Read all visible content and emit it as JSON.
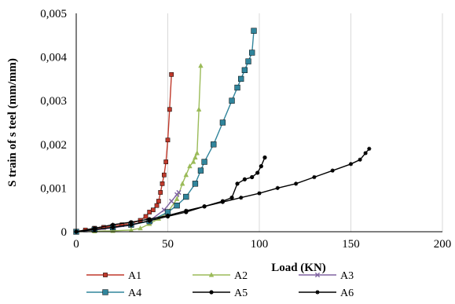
{
  "chart_data": {
    "type": "line",
    "xlabel": "Load (KN)",
    "ylabel": "S train of s teel (mm/mm)",
    "xlim": [
      0,
      200
    ],
    "ylim": [
      0,
      0.005
    ],
    "x_ticks": [
      0,
      50,
      100,
      150,
      200
    ],
    "x_tick_labels": [
      "0",
      "50",
      "100",
      "150",
      "200"
    ],
    "y_ticks": [
      0,
      0.001,
      0.002,
      0.003,
      0.004,
      0.005
    ],
    "y_tick_labels": [
      "0",
      "0,001",
      "0,002",
      "0,003",
      "0,004",
      "0,005"
    ],
    "grid": "vertical",
    "legend_position": "bottom",
    "series": [
      {
        "name": "A1",
        "color": "#c0392b",
        "marker": "square",
        "points": [
          [
            0,
            0
          ],
          [
            5,
            4e-05
          ],
          [
            10,
            8e-05
          ],
          [
            15,
            0.0001
          ],
          [
            20,
            0.00013
          ],
          [
            25,
            0.00016
          ],
          [
            30,
            0.00019
          ],
          [
            35,
            0.00026
          ],
          [
            38,
            0.00035
          ],
          [
            40,
            0.00045
          ],
          [
            42,
            0.0005
          ],
          [
            44,
            0.0006
          ],
          [
            45,
            0.0007
          ],
          [
            46,
            0.0009
          ],
          [
            47,
            0.0011
          ],
          [
            48,
            0.0013
          ],
          [
            49,
            0.0016
          ],
          [
            50,
            0.0021
          ],
          [
            51,
            0.0028
          ],
          [
            52,
            0.0036
          ]
        ]
      },
      {
        "name": "A2",
        "color": "#9bbb59",
        "marker": "triangle",
        "points": [
          [
            0,
            0
          ],
          [
            10,
            1e-05
          ],
          [
            20,
            2e-05
          ],
          [
            30,
            4e-05
          ],
          [
            35,
            8e-05
          ],
          [
            40,
            0.00018
          ],
          [
            45,
            0.0003
          ],
          [
            50,
            0.00045
          ],
          [
            55,
            0.00075
          ],
          [
            58,
            0.0011
          ],
          [
            60,
            0.0013
          ],
          [
            62,
            0.0015
          ],
          [
            64,
            0.0016
          ],
          [
            65,
            0.0017
          ],
          [
            66,
            0.0018
          ],
          [
            67,
            0.0028
          ],
          [
            68,
            0.0038
          ]
        ]
      },
      {
        "name": "A3",
        "color": "#8064a2",
        "marker": "x",
        "points": [
          [
            0,
            0
          ],
          [
            10,
            4e-05
          ],
          [
            20,
            9e-05
          ],
          [
            30,
            0.00015
          ],
          [
            40,
            0.00025
          ],
          [
            48,
            0.0005
          ],
          [
            52,
            0.0007
          ],
          [
            55,
            0.00085
          ],
          [
            56,
            0.0009
          ]
        ]
      },
      {
        "name": "A4",
        "color": "#31859c",
        "marker": "square",
        "points": [
          [
            0,
            0
          ],
          [
            10,
            5e-05
          ],
          [
            20,
            0.0001
          ],
          [
            30,
            0.00016
          ],
          [
            40,
            0.00024
          ],
          [
            50,
            0.00045
          ],
          [
            55,
            0.0006
          ],
          [
            60,
            0.0008
          ],
          [
            65,
            0.0011
          ],
          [
            68,
            0.0014
          ],
          [
            70,
            0.0016
          ],
          [
            75,
            0.002
          ],
          [
            80,
            0.0025
          ],
          [
            85,
            0.003
          ],
          [
            88,
            0.0033
          ],
          [
            90,
            0.0035
          ],
          [
            92,
            0.0037
          ],
          [
            94,
            0.0039
          ],
          [
            96,
            0.0041
          ],
          [
            97,
            0.0046
          ]
        ]
      },
      {
        "name": "A5",
        "color": "#000000",
        "marker": "circle",
        "points": [
          [
            0,
            0
          ],
          [
            10,
            5e-05
          ],
          [
            20,
            0.0001
          ],
          [
            30,
            0.00016
          ],
          [
            40,
            0.00025
          ],
          [
            50,
            0.00035
          ],
          [
            60,
            0.00045
          ],
          [
            70,
            0.00058
          ],
          [
            80,
            0.0007
          ],
          [
            85,
            0.00078
          ],
          [
            88,
            0.0011
          ],
          [
            92,
            0.0012
          ],
          [
            96,
            0.00125
          ],
          [
            99,
            0.00135
          ],
          [
            101,
            0.0015
          ],
          [
            103,
            0.0017
          ]
        ]
      },
      {
        "name": "A6",
        "color": "#000000",
        "marker": "asterisk",
        "points": [
          [
            0,
            0
          ],
          [
            10,
            8e-05
          ],
          [
            20,
            0.00016
          ],
          [
            30,
            0.00022
          ],
          [
            40,
            0.00029
          ],
          [
            50,
            0.00037
          ],
          [
            60,
            0.00048
          ],
          [
            70,
            0.00058
          ],
          [
            80,
            0.00068
          ],
          [
            90,
            0.00078
          ],
          [
            100,
            0.00088
          ],
          [
            110,
            0.001
          ],
          [
            120,
            0.0011
          ],
          [
            130,
            0.00125
          ],
          [
            140,
            0.0014
          ],
          [
            150,
            0.00155
          ],
          [
            155,
            0.00165
          ],
          [
            158,
            0.0018
          ],
          [
            160,
            0.0019
          ]
        ]
      }
    ]
  }
}
